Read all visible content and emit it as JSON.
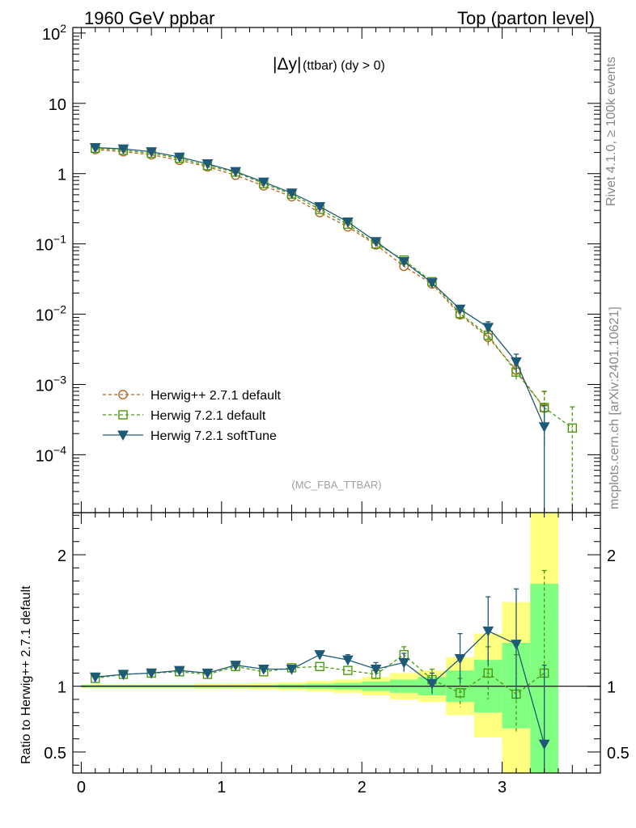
{
  "header": {
    "left": "1960 GeV ppbar",
    "right": "Top (parton level)"
  },
  "side_labels": {
    "rivet": "Rivet 4.1.0, ≥ 100k events",
    "mcplots": "mcplots.cern.ch [arXiv:2401.10621]"
  },
  "colors": {
    "herwigpp": "#b5651d",
    "herwig721": "#4c9a10",
    "softtune": "#1e5a78",
    "band_yellow": "#ffff80",
    "band_green": "#80ff80"
  },
  "chart_data": [
    {
      "type": "scatter",
      "title_main": "|Δy|",
      "title_sub": "(ttbar) (dy > 0)",
      "watermark": "(MC_FBA_TTBAR)",
      "yscale": "log",
      "ylim": [
        1.5e-05,
        120
      ],
      "xlim": [
        -0.06,
        3.7
      ],
      "ytick_labels": [
        {
          "value": 100,
          "base": "10",
          "exp": "2"
        },
        {
          "value": 10,
          "base": "10",
          "exp": ""
        },
        {
          "value": 1,
          "base": "1",
          "exp": ""
        },
        {
          "value": 0.1,
          "base": "10",
          "exp": "−1"
        },
        {
          "value": 0.01,
          "base": "10",
          "exp": "−2"
        },
        {
          "value": 0.001,
          "base": "10",
          "exp": "−3"
        },
        {
          "value": 0.0001,
          "base": "10",
          "exp": "−4"
        }
      ],
      "legend": [
        {
          "key": "herwigpp",
          "label": "Herwig++ 2.7.1 default"
        },
        {
          "key": "herwig721",
          "label": "Herwig 7.2.1 default"
        },
        {
          "key": "softtune",
          "label": "Herwig 7.2.1 softTune"
        }
      ],
      "series": [
        {
          "name": "Herwig++ 2.7.1 default",
          "key": "herwigpp",
          "marker": "circle",
          "dashed": true,
          "x": [
            0.1,
            0.3,
            0.5,
            0.7,
            0.9,
            1.1,
            1.3,
            1.5,
            1.7,
            1.9,
            2.1,
            2.3,
            2.5,
            2.7,
            2.9,
            3.1,
            3.3
          ],
          "y": [
            2.2,
            2.05,
            1.85,
            1.55,
            1.25,
            0.95,
            0.67,
            0.47,
            0.28,
            0.175,
            0.097,
            0.048,
            0.027,
            0.0098,
            0.0047,
            0.0016,
            0.00046
          ],
          "err": [
            0,
            0,
            0,
            0,
            0,
            0,
            0,
            0,
            0,
            0,
            0,
            0,
            0,
            0.0013,
            0.0011,
            0.0004,
            0.00033
          ]
        },
        {
          "name": "Herwig 7.2.1 default",
          "key": "herwig721",
          "marker": "square",
          "dashed": true,
          "x": [
            0.1,
            0.3,
            0.5,
            0.7,
            0.9,
            1.1,
            1.3,
            1.5,
            1.7,
            1.9,
            2.1,
            2.3,
            2.5,
            2.7,
            2.9,
            3.1,
            3.3,
            3.5
          ],
          "y": [
            2.3,
            2.15,
            1.95,
            1.65,
            1.3,
            1.05,
            0.72,
            0.51,
            0.31,
            0.19,
            0.1,
            0.059,
            0.029,
            0.0102,
            0.005,
            0.0015,
            0.00047,
            0.00024
          ],
          "err": [
            0,
            0,
            0,
            0,
            0,
            0,
            0,
            0,
            0,
            0,
            0,
            0.005,
            0.002,
            0.0014,
            0.0011,
            0.0004,
            0.00033,
            0.00024
          ]
        },
        {
          "name": "Herwig 7.2.1 softTune",
          "key": "softtune",
          "marker": "triangle-down",
          "dashed": false,
          "x": [
            0.1,
            0.3,
            0.5,
            0.7,
            0.9,
            1.1,
            1.3,
            1.5,
            1.7,
            1.9,
            2.1,
            2.3,
            2.5,
            2.7,
            2.9,
            3.1,
            3.3
          ],
          "y": [
            2.35,
            2.25,
            2.05,
            1.72,
            1.38,
            1.07,
            0.76,
            0.53,
            0.34,
            0.205,
            0.108,
            0.056,
            0.028,
            0.0118,
            0.0065,
            0.0021,
            0.00025
          ],
          "err": [
            0,
            0,
            0,
            0,
            0,
            0,
            0,
            0,
            0,
            0,
            0,
            0,
            0,
            0.0015,
            0.0013,
            0.0006,
            0.00025
          ]
        }
      ]
    },
    {
      "type": "scatter",
      "ylabel": "Ratio to Herwig++ 2.7.1 default",
      "ylim": [
        0.34,
        2.32
      ],
      "xlim": [
        -0.06,
        3.7
      ],
      "yticks": [
        0.5,
        1,
        2
      ],
      "ytick_labels": [
        "0.5",
        "1",
        "2"
      ],
      "xticks": [
        0,
        1,
        2,
        3
      ],
      "xtick_labels": [
        "0",
        "1",
        "2",
        "3"
      ],
      "reference": 1.0,
      "band_bins": [
        {
          "lo": 0.0,
          "hi": 0.2,
          "green": [
            0.99,
            1.01
          ],
          "yellow": [
            0.985,
            1.015
          ]
        },
        {
          "lo": 0.2,
          "hi": 0.4,
          "green": [
            0.99,
            1.01
          ],
          "yellow": [
            0.985,
            1.015
          ]
        },
        {
          "lo": 0.4,
          "hi": 0.6,
          "green": [
            0.99,
            1.01
          ],
          "yellow": [
            0.985,
            1.015
          ]
        },
        {
          "lo": 0.6,
          "hi": 0.8,
          "green": [
            0.99,
            1.01
          ],
          "yellow": [
            0.985,
            1.015
          ]
        },
        {
          "lo": 0.8,
          "hi": 1.0,
          "green": [
            0.99,
            1.01
          ],
          "yellow": [
            0.98,
            1.02
          ]
        },
        {
          "lo": 1.0,
          "hi": 1.2,
          "green": [
            0.99,
            1.01
          ],
          "yellow": [
            0.98,
            1.02
          ]
        },
        {
          "lo": 1.2,
          "hi": 1.4,
          "green": [
            0.99,
            1.01
          ],
          "yellow": [
            0.975,
            1.025
          ]
        },
        {
          "lo": 1.4,
          "hi": 1.6,
          "green": [
            0.985,
            1.015
          ],
          "yellow": [
            0.97,
            1.03
          ]
        },
        {
          "lo": 1.6,
          "hi": 1.8,
          "green": [
            0.98,
            1.02
          ],
          "yellow": [
            0.96,
            1.04
          ]
        },
        {
          "lo": 1.8,
          "hi": 2.0,
          "green": [
            0.975,
            1.025
          ],
          "yellow": [
            0.95,
            1.05
          ]
        },
        {
          "lo": 2.0,
          "hi": 2.2,
          "green": [
            0.965,
            1.035
          ],
          "yellow": [
            0.93,
            1.07
          ]
        },
        {
          "lo": 2.2,
          "hi": 2.4,
          "green": [
            0.95,
            1.05
          ],
          "yellow": [
            0.9,
            1.1
          ]
        },
        {
          "lo": 2.4,
          "hi": 2.6,
          "green": [
            0.93,
            1.07
          ],
          "yellow": [
            0.88,
            1.12
          ]
        },
        {
          "lo": 2.6,
          "hi": 2.8,
          "green": [
            0.88,
            1.12
          ],
          "yellow": [
            0.78,
            1.22
          ]
        },
        {
          "lo": 2.8,
          "hi": 3.0,
          "green": [
            0.8,
            1.2
          ],
          "yellow": [
            0.61,
            1.4
          ]
        },
        {
          "lo": 3.0,
          "hi": 3.2,
          "green": [
            0.68,
            1.33
          ],
          "yellow": [
            0.34,
            1.64
          ]
        },
        {
          "lo": 3.2,
          "hi": 3.4,
          "green": [
            0.34,
            1.78
          ],
          "yellow": [
            0.34,
            2.32
          ]
        }
      ],
      "series": [
        {
          "name": "Herwig 7.2.1 default",
          "key": "herwig721",
          "marker": "square",
          "dashed": true,
          "x": [
            0.1,
            0.3,
            0.5,
            0.7,
            0.9,
            1.1,
            1.3,
            1.5,
            1.7,
            1.9,
            2.1,
            2.3,
            2.5,
            2.7,
            2.9,
            3.1,
            3.3
          ],
          "y": [
            1.06,
            1.09,
            1.1,
            1.11,
            1.09,
            1.15,
            1.11,
            1.14,
            1.15,
            1.12,
            1.09,
            1.24,
            1.05,
            0.95,
            1.1,
            0.94,
            1.1
          ],
          "err": [
            0,
            0,
            0,
            0,
            0,
            0,
            0,
            0,
            0,
            0,
            0.03,
            0.06,
            0.08,
            0.11,
            0.2,
            0.3,
            0.78
          ]
        },
        {
          "name": "Herwig 7.2.1 softTune",
          "key": "softtune",
          "marker": "triangle-down",
          "dashed": false,
          "x": [
            0.1,
            0.3,
            0.5,
            0.7,
            0.9,
            1.1,
            1.3,
            1.5,
            1.7,
            1.9,
            2.1,
            2.3,
            2.5,
            2.7,
            2.9,
            3.1,
            3.3
          ],
          "y": [
            1.07,
            1.09,
            1.1,
            1.12,
            1.1,
            1.16,
            1.13,
            1.13,
            1.24,
            1.2,
            1.13,
            1.18,
            1.02,
            1.21,
            1.42,
            1.32,
            0.56
          ],
          "err": [
            0,
            0,
            0,
            0,
            0,
            0,
            0,
            0,
            0,
            0.04,
            0.05,
            0.07,
            0.08,
            0.19,
            0.26,
            0.42,
            0.6
          ]
        }
      ]
    }
  ]
}
